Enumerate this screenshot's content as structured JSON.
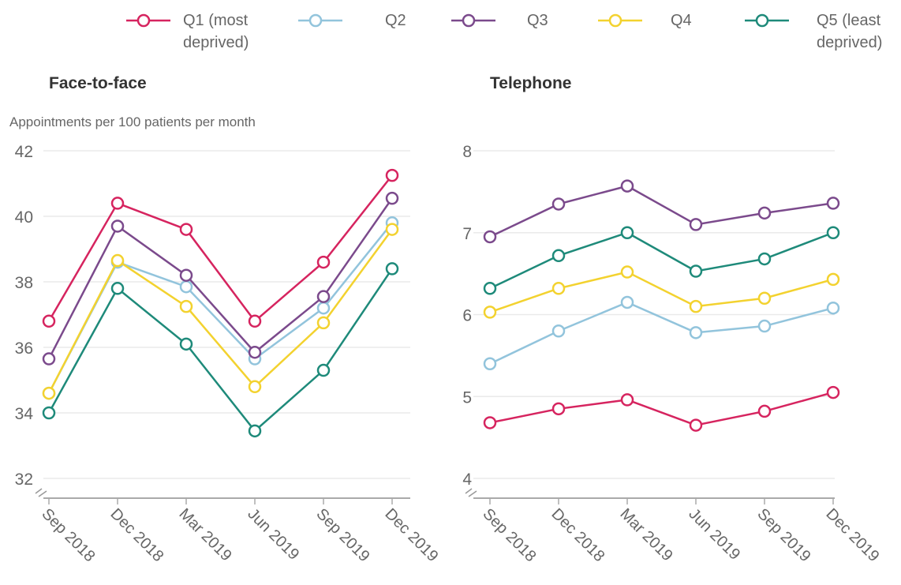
{
  "chart_data": [
    {
      "type": "line",
      "title": "Face-to-face",
      "y_label": "Appointments per 100 patients per month",
      "categories": [
        "Sep 2018",
        "Dec 2018",
        "Mar 2019",
        "Jun 2019",
        "Sep 2019",
        "Dec 2019"
      ],
      "ylim": [
        32,
        42
      ],
      "yticks": [
        32,
        34,
        36,
        38,
        40,
        42
      ],
      "grid": true,
      "series": [
        {
          "name": "Q1 (most deprived)",
          "color": "#d6245f",
          "values": [
            36.8,
            40.4,
            39.6,
            36.8,
            38.6,
            41.25
          ]
        },
        {
          "name": "Q2",
          "color": "#92c4dc",
          "values": [
            34.6,
            38.6,
            37.85,
            35.65,
            37.2,
            39.8
          ]
        },
        {
          "name": "Q3",
          "color": "#7b4a8c",
          "values": [
            35.65,
            39.7,
            38.2,
            35.85,
            37.55,
            40.55
          ]
        },
        {
          "name": "Q4",
          "color": "#f3d22f",
          "values": [
            34.6,
            38.65,
            37.25,
            34.8,
            36.75,
            39.6
          ]
        },
        {
          "name": "Q5 (least deprived)",
          "color": "#1e8a7a",
          "values": [
            34.0,
            37.8,
            36.1,
            33.45,
            35.3,
            38.4
          ]
        }
      ]
    },
    {
      "type": "line",
      "title": "Telephone",
      "categories": [
        "Sep 2018",
        "Dec 2018",
        "Mar 2019",
        "Jun 2019",
        "Sep 2019",
        "Dec 2019"
      ],
      "ylim": [
        4,
        8
      ],
      "yticks": [
        4,
        5,
        6,
        7,
        8
      ],
      "grid": true,
      "series": [
        {
          "color": "#d6245f",
          "values": [
            4.68,
            4.85,
            4.96,
            4.65,
            4.82,
            5.05
          ]
        },
        {
          "color": "#92c4dc",
          "values": [
            5.4,
            5.8,
            6.15,
            5.78,
            5.86,
            6.08
          ]
        },
        {
          "color": "#7b4a8c",
          "values": [
            6.95,
            7.35,
            7.57,
            7.1,
            7.24,
            7.36
          ]
        },
        {
          "color": "#f3d22f",
          "values": [
            6.03,
            6.32,
            6.52,
            6.1,
            6.2,
            6.43
          ]
        },
        {
          "color": "#1e8a7a",
          "values": [
            6.32,
            6.72,
            7.0,
            6.53,
            6.68,
            7.0
          ]
        }
      ]
    }
  ]
}
